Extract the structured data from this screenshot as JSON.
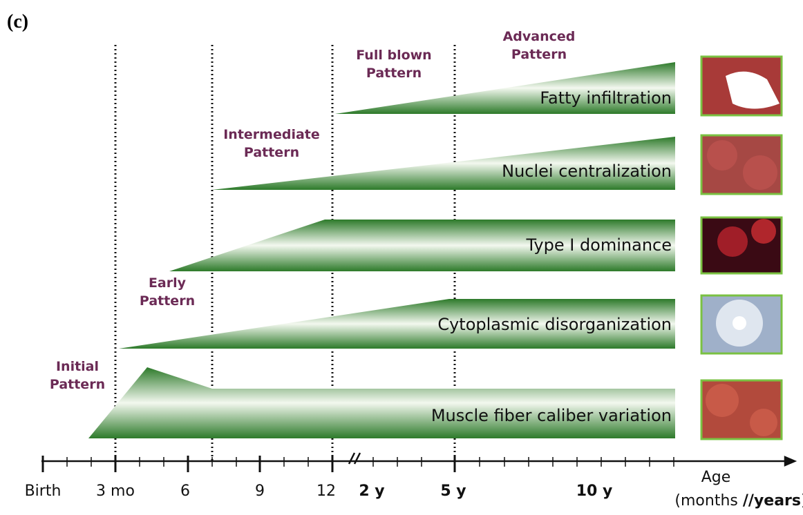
{
  "panel_label": "(c)",
  "phases": [
    {
      "lines": [
        "Initial",
        "Pattern"
      ]
    },
    {
      "lines": [
        "Early",
        "Pattern"
      ]
    },
    {
      "lines": [
        "Intermediate",
        "Pattern"
      ]
    },
    {
      "lines": [
        "Full blown",
        "Pattern"
      ]
    },
    {
      "lines": [
        "Advanced",
        "Pattern"
      ]
    }
  ],
  "bars": [
    {
      "label": "Fatty infiltration"
    },
    {
      "label": "Nuclei centralization"
    },
    {
      "label": "Type I dominance"
    },
    {
      "label": "Cytoplasmic disorganization"
    },
    {
      "label": "Muscle fiber caliber variation"
    }
  ],
  "axis": {
    "ticks": [
      "Birth",
      "3 mo",
      "6",
      "9",
      "12",
      "2 y",
      "5 y",
      "10 y"
    ],
    "title": "Age",
    "subtitle": {
      "open": "(months ",
      "sep": "//",
      "unit": "years",
      "close": ")"
    }
  }
}
